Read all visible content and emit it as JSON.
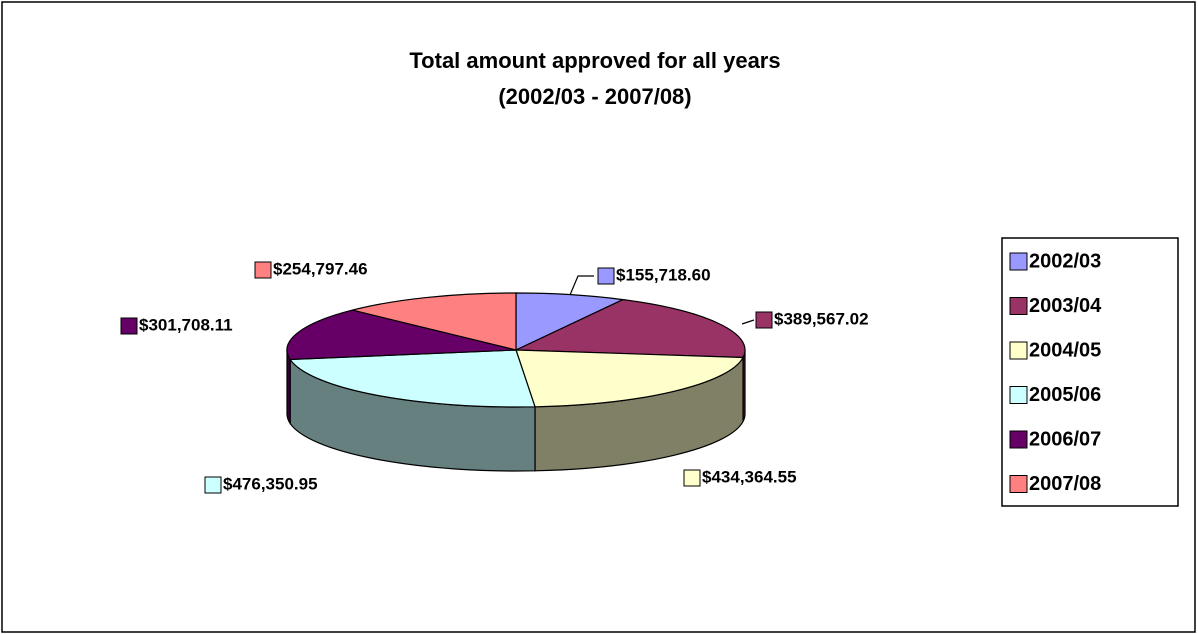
{
  "chart_data": {
    "type": "pie",
    "title": "Total amount approved for all years",
    "subtitle": "(2002/03 - 2007/08)",
    "categories": [
      "2002/03",
      "2003/04",
      "2004/05",
      "2005/06",
      "2006/07",
      "2007/08"
    ],
    "values": [
      155718.6,
      389567.02,
      434364.55,
      476350.95,
      301708.11,
      254797.46
    ],
    "value_labels": [
      "$155,718.60",
      "$389,567.02",
      "$434,364.55",
      "$476,350.95",
      "$301,708.11",
      "$254,797.46"
    ],
    "colors": [
      "#9999ff",
      "#993366",
      "#ffffcc",
      "#ccffff",
      "#660066",
      "#ff8080"
    ],
    "legend": "right"
  }
}
